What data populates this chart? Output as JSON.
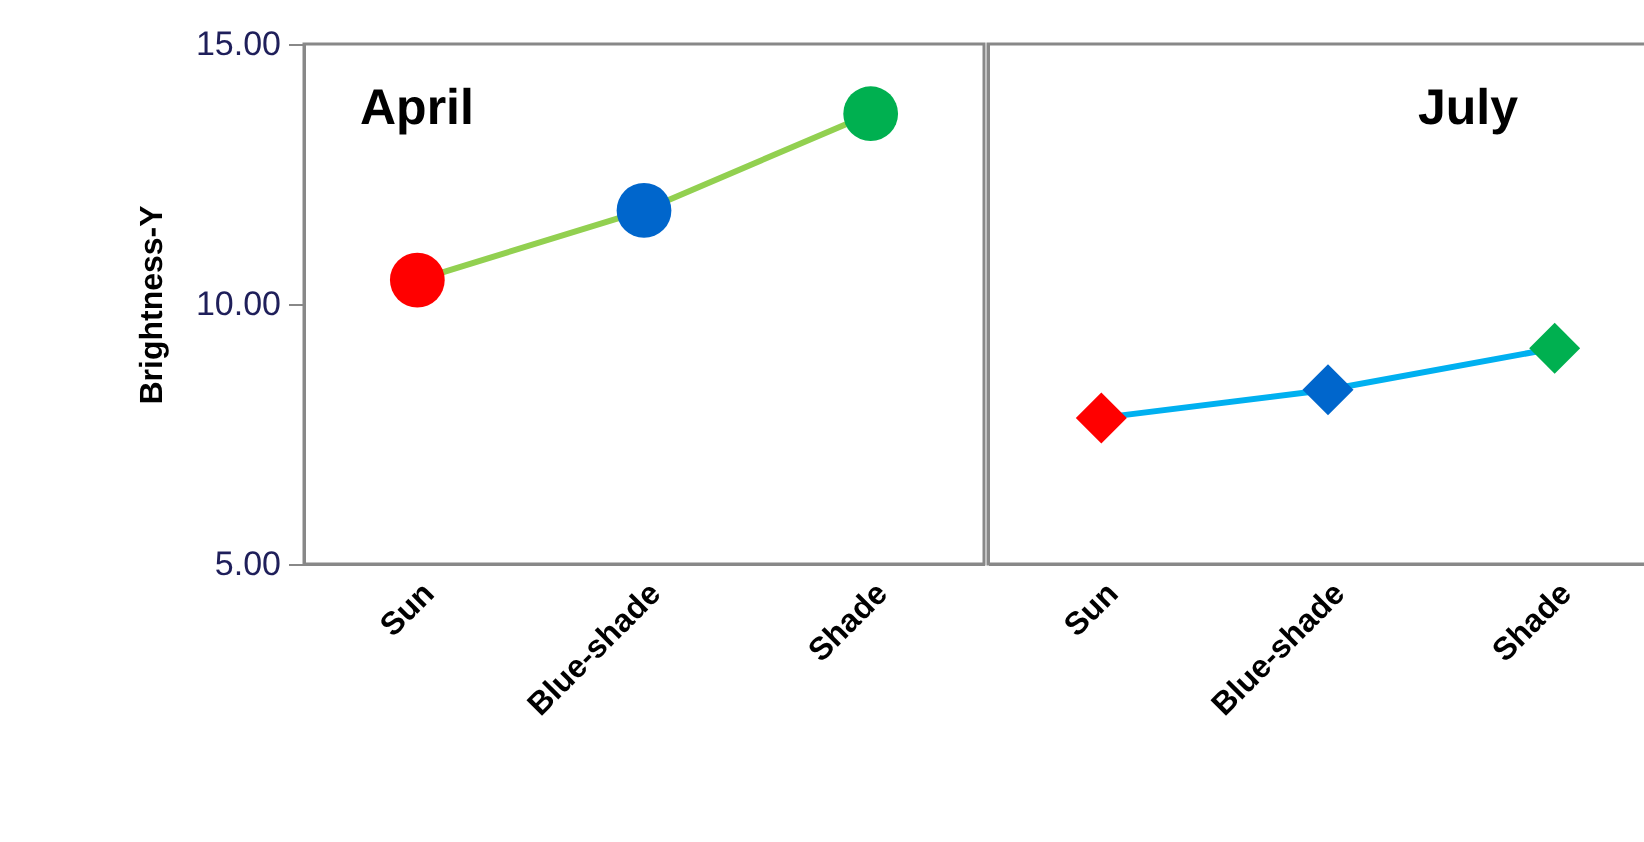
{
  "chart_data": [
    {
      "type": "line",
      "ylabel": "Brightness-Y",
      "annotations": [
        "April"
      ],
      "categories": [
        "Sun",
        "Blue-shade",
        "Shade"
      ],
      "marker": "circle",
      "ylim": [
        5,
        15
      ],
      "yticks": [
        {
          "value": 5,
          "label": "5.00"
        },
        {
          "value": 10,
          "label": "10.00"
        },
        {
          "value": 15,
          "label": "15.00"
        }
      ],
      "series": [
        {
          "color": "#92d050",
          "colors": [
            "#ff0000",
            "#0066cc",
            "#00b050"
          ],
          "values": [
            10.46,
            11.8,
            13.66
          ]
        }
      ]
    },
    {
      "type": "line",
      "annotations": [
        "July"
      ],
      "categories": [
        "Sun",
        "Blue-shade",
        "Shade"
      ],
      "marker": "diamond",
      "ylim": [
        5,
        15
      ],
      "tick_labels": "x",
      "series": [
        {
          "color": "#00b0f0",
          "colors": [
            "#ff0000",
            "#0066cc",
            "#00b050"
          ],
          "values": [
            7.81,
            8.35,
            9.15
          ]
        }
      ]
    }
  ]
}
